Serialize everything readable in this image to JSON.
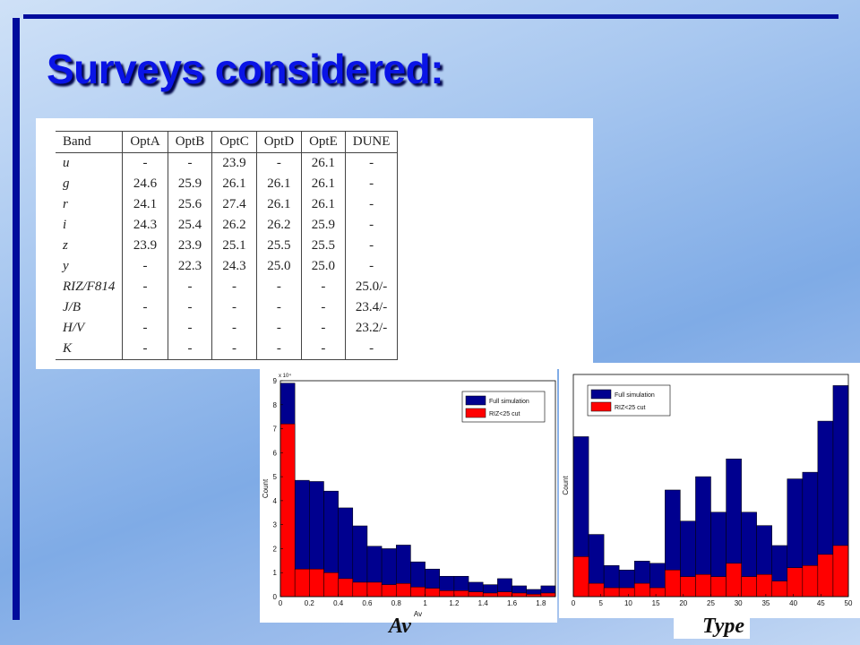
{
  "slide": {
    "title": "Surveys considered:",
    "captions": [
      "Av",
      "Type"
    ]
  },
  "table": {
    "header": [
      "Band",
      "OptA",
      "OptB",
      "OptC",
      "OptD",
      "OptE",
      "DUNE"
    ],
    "rows": [
      [
        "u",
        "-",
        "-",
        "23.9",
        "-",
        "26.1",
        "-"
      ],
      [
        "g",
        "24.6",
        "25.9",
        "26.1",
        "26.1",
        "26.1",
        "-"
      ],
      [
        "r",
        "24.1",
        "25.6",
        "27.4",
        "26.1",
        "26.1",
        "-"
      ],
      [
        "i",
        "24.3",
        "25.4",
        "26.2",
        "26.2",
        "25.9",
        "-"
      ],
      [
        "z",
        "23.9",
        "23.9",
        "25.1",
        "25.5",
        "25.5",
        "-"
      ],
      [
        "y",
        "-",
        "22.3",
        "24.3",
        "25.0",
        "25.0",
        "-"
      ],
      [
        "RIZ/F814",
        "-",
        "-",
        "-",
        "-",
        "-",
        "25.0/-"
      ],
      [
        "J/B",
        "-",
        "-",
        "-",
        "-",
        "-",
        "23.4/-"
      ],
      [
        "H/V",
        "-",
        "-",
        "-",
        "-",
        "-",
        "23.2/-"
      ],
      [
        "K",
        "-",
        "-",
        "-",
        "-",
        "-",
        "-"
      ]
    ]
  },
  "chart_data": [
    {
      "type": "histogram",
      "xlabel": "Av",
      "ylabel": "Count",
      "y_multiplier": "x 10⁴",
      "legend": "upper right",
      "bins": [
        0,
        0.1,
        0.2,
        0.3,
        0.4,
        0.5,
        0.6,
        0.7,
        0.8,
        0.9,
        1.0,
        1.1,
        1.2,
        1.3,
        1.4,
        1.5,
        1.6,
        1.7,
        1.8,
        1.9
      ],
      "series": [
        {
          "name": "Full simulation",
          "color": "#00008f",
          "values": [
            8.9,
            4.85,
            4.8,
            4.4,
            3.7,
            2.95,
            2.1,
            2.0,
            2.15,
            1.45,
            1.15,
            0.85,
            0.85,
            0.6,
            0.5,
            0.75,
            0.45,
            0.3,
            0.45
          ]
        },
        {
          "name": "RIZ<25 cut",
          "color": "#ff0000",
          "values": [
            7.2,
            1.15,
            1.15,
            1.0,
            0.75,
            0.6,
            0.6,
            0.5,
            0.55,
            0.4,
            0.35,
            0.25,
            0.25,
            0.2,
            0.15,
            0.2,
            0.15,
            0.1,
            0.15
          ]
        }
      ],
      "xlim": [
        0,
        1.9
      ],
      "ylim": [
        0,
        9
      ],
      "xticks": [
        0,
        0.2,
        0.4,
        0.6,
        0.8,
        1,
        1.2,
        1.4,
        1.6,
        1.8
      ],
      "yticks": [
        0,
        1,
        2,
        3,
        4,
        5,
        6,
        7,
        8,
        9
      ]
    },
    {
      "type": "histogram",
      "ylabel": "Count",
      "legend": "upper left",
      "bins": [
        0,
        2.78,
        5.56,
        8.33,
        11.11,
        13.89,
        16.67,
        19.44,
        22.22,
        25,
        27.78,
        30.56,
        33.33,
        36.11,
        38.89,
        41.67,
        44.44,
        47.22,
        50
      ],
      "series": [
        {
          "name": "Full simulation",
          "color": "#00008f",
          "values": [
            72,
            28,
            14,
            12,
            16,
            15,
            48,
            34,
            54,
            38,
            62,
            38,
            32,
            23,
            53,
            56,
            79,
            95
          ]
        },
        {
          "name": "RIZ<25 cut",
          "color": "#ff0000",
          "values": [
            18,
            6,
            4,
            4,
            6,
            4,
            12,
            9,
            10,
            9,
            15,
            9,
            10,
            7,
            13,
            14,
            19,
            23
          ]
        }
      ],
      "xlim": [
        0,
        50
      ],
      "ylim": [
        0,
        100
      ],
      "xticks": [
        0,
        5,
        10,
        15,
        20,
        25,
        30,
        35,
        40,
        45,
        50
      ]
    }
  ]
}
